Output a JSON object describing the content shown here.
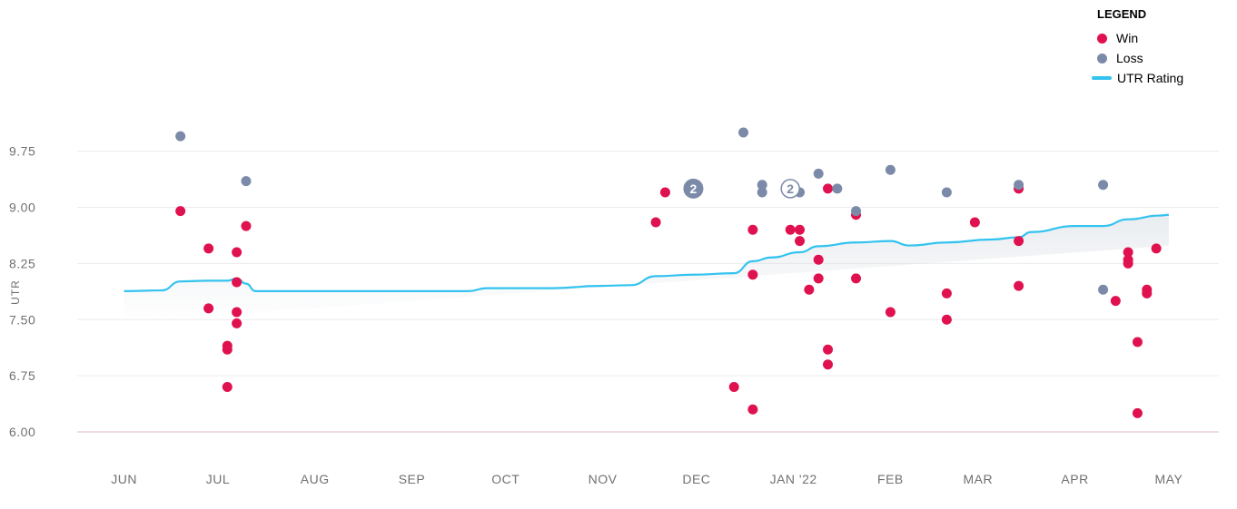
{
  "legend": {
    "title": "LEGEND",
    "items": [
      {
        "label": "Win",
        "color": "#e0114f",
        "kind": "dot"
      },
      {
        "label": "Loss",
        "color": "#7b8aa8",
        "kind": "dot"
      },
      {
        "label": "UTR Rating",
        "color": "#33c3ef",
        "kind": "line"
      }
    ]
  },
  "chart_data": {
    "type": "scatter",
    "ylabel": "UTR",
    "ylim": [
      6.0,
      10.0
    ],
    "y_ticks": [
      "6.00",
      "6.75",
      "7.50",
      "8.25",
      "9.00",
      "9.75"
    ],
    "y_tick_values": [
      6.0,
      6.75,
      7.5,
      8.25,
      9.0,
      9.75
    ],
    "x_ticks": [
      "JUN",
      "JUL",
      "AUG",
      "SEP",
      "OCT",
      "NOV",
      "DEC",
      "JAN '22",
      "FEB",
      "MAR",
      "APR",
      "MAY"
    ],
    "x_tick_dates": [
      "2021-06-01",
      "2021-07-01",
      "2021-08-01",
      "2021-09-01",
      "2021-10-01",
      "2021-11-01",
      "2021-12-01",
      "2022-01-01",
      "2022-02-01",
      "2022-03-01",
      "2022-04-01",
      "2022-05-01"
    ],
    "grid": true,
    "legend_position": "top-right",
    "series": [
      {
        "name": "Win",
        "color": "#e0114f",
        "points": [
          {
            "x": "2021-06-19",
            "y": 8.95
          },
          {
            "x": "2021-06-28",
            "y": 8.45
          },
          {
            "x": "2021-06-28",
            "y": 7.65
          },
          {
            "x": "2021-07-04",
            "y": 7.15
          },
          {
            "x": "2021-07-04",
            "y": 7.1
          },
          {
            "x": "2021-07-04",
            "y": 6.6
          },
          {
            "x": "2021-07-07",
            "y": 8.4
          },
          {
            "x": "2021-07-07",
            "y": 8.0
          },
          {
            "x": "2021-07-07",
            "y": 7.6
          },
          {
            "x": "2021-07-07",
            "y": 7.45
          },
          {
            "x": "2021-07-10",
            "y": 8.75
          },
          {
            "x": "2021-11-18",
            "y": 8.8
          },
          {
            "x": "2021-11-21",
            "y": 9.2
          },
          {
            "x": "2021-12-13",
            "y": 6.6
          },
          {
            "x": "2021-12-19",
            "y": 8.7
          },
          {
            "x": "2021-12-19",
            "y": 8.1
          },
          {
            "x": "2021-12-19",
            "y": 6.3
          },
          {
            "x": "2021-12-31",
            "y": 8.7
          },
          {
            "x": "2022-01-03",
            "y": 8.7
          },
          {
            "x": "2022-01-03",
            "y": 8.55
          },
          {
            "x": "2022-01-06",
            "y": 7.9
          },
          {
            "x": "2022-01-09",
            "y": 8.3
          },
          {
            "x": "2022-01-09",
            "y": 8.05
          },
          {
            "x": "2022-01-12",
            "y": 9.25
          },
          {
            "x": "2022-01-12",
            "y": 7.1
          },
          {
            "x": "2022-01-12",
            "y": 6.9
          },
          {
            "x": "2022-01-21",
            "y": 8.9
          },
          {
            "x": "2022-01-21",
            "y": 8.05
          },
          {
            "x": "2022-02-01",
            "y": 7.6
          },
          {
            "x": "2022-02-19",
            "y": 7.85
          },
          {
            "x": "2022-02-19",
            "y": 7.5
          },
          {
            "x": "2022-02-28",
            "y": 8.8
          },
          {
            "x": "2022-03-14",
            "y": 9.25
          },
          {
            "x": "2022-03-14",
            "y": 8.55
          },
          {
            "x": "2022-03-14",
            "y": 7.95
          },
          {
            "x": "2022-04-14",
            "y": 7.75
          },
          {
            "x": "2022-04-18",
            "y": 8.4
          },
          {
            "x": "2022-04-18",
            "y": 8.3
          },
          {
            "x": "2022-04-18",
            "y": 8.25
          },
          {
            "x": "2022-04-21",
            "y": 7.2
          },
          {
            "x": "2022-04-21",
            "y": 6.25
          },
          {
            "x": "2022-04-24",
            "y": 7.9
          },
          {
            "x": "2022-04-24",
            "y": 7.85
          },
          {
            "x": "2022-04-27",
            "y": 8.45
          }
        ]
      },
      {
        "name": "Loss",
        "color": "#7b8aa8",
        "points": [
          {
            "x": "2021-06-19",
            "y": 9.95
          },
          {
            "x": "2021-07-10",
            "y": 9.35
          },
          {
            "x": "2021-12-16",
            "y": 10.0
          },
          {
            "x": "2021-12-22",
            "y": 9.3
          },
          {
            "x": "2021-12-22",
            "y": 9.2
          },
          {
            "x": "2022-01-03",
            "y": 9.2
          },
          {
            "x": "2022-01-09",
            "y": 9.45
          },
          {
            "x": "2022-01-15",
            "y": 9.25
          },
          {
            "x": "2022-01-21",
            "y": 8.95
          },
          {
            "x": "2022-02-01",
            "y": 9.5
          },
          {
            "x": "2022-02-19",
            "y": 9.2
          },
          {
            "x": "2022-03-14",
            "y": 9.3
          },
          {
            "x": "2022-04-10",
            "y": 9.3
          },
          {
            "x": "2022-04-10",
            "y": 7.9
          }
        ]
      }
    ],
    "clusters": [
      {
        "x": "2021-11-30",
        "y": 9.25,
        "label": "2",
        "style": "filled",
        "color": "#7b8aa8"
      },
      {
        "x": "2021-12-31",
        "y": 9.25,
        "label": "2",
        "style": "outline",
        "color": "#7b8aa8"
      }
    ],
    "rating_line": {
      "name": "UTR Rating",
      "color": "#33c3ef",
      "points": [
        {
          "x": "2021-06-01",
          "y": 7.88
        },
        {
          "x": "2021-06-13",
          "y": 7.89
        },
        {
          "x": "2021-06-19",
          "y": 8.01
        },
        {
          "x": "2021-06-28",
          "y": 8.02
        },
        {
          "x": "2021-07-04",
          "y": 8.02
        },
        {
          "x": "2021-07-07",
          "y": 8.05
        },
        {
          "x": "2021-07-10",
          "y": 7.98
        },
        {
          "x": "2021-07-13",
          "y": 7.88
        },
        {
          "x": "2021-07-20",
          "y": 7.88
        },
        {
          "x": "2021-09-10",
          "y": 7.88
        },
        {
          "x": "2021-09-19",
          "y": 7.88
        },
        {
          "x": "2021-09-25",
          "y": 7.92
        },
        {
          "x": "2021-10-16",
          "y": 7.92
        },
        {
          "x": "2021-10-31",
          "y": 7.95
        },
        {
          "x": "2021-11-10",
          "y": 7.96
        },
        {
          "x": "2021-11-18",
          "y": 8.08
        },
        {
          "x": "2021-11-30",
          "y": 8.1
        },
        {
          "x": "2021-12-13",
          "y": 8.12
        },
        {
          "x": "2021-12-19",
          "y": 8.28
        },
        {
          "x": "2021-12-25",
          "y": 8.33
        },
        {
          "x": "2022-01-03",
          "y": 8.4
        },
        {
          "x": "2022-01-09",
          "y": 8.48
        },
        {
          "x": "2022-01-21",
          "y": 8.53
        },
        {
          "x": "2022-02-01",
          "y": 8.55
        },
        {
          "x": "2022-02-07",
          "y": 8.49
        },
        {
          "x": "2022-02-19",
          "y": 8.53
        },
        {
          "x": "2022-03-05",
          "y": 8.57
        },
        {
          "x": "2022-03-14",
          "y": 8.6
        },
        {
          "x": "2022-03-18",
          "y": 8.67
        },
        {
          "x": "2022-04-01",
          "y": 8.75
        },
        {
          "x": "2022-04-10",
          "y": 8.75
        },
        {
          "x": "2022-04-18",
          "y": 8.84
        },
        {
          "x": "2022-04-28",
          "y": 8.89
        },
        {
          "x": "2022-05-01",
          "y": 8.9
        }
      ]
    }
  }
}
